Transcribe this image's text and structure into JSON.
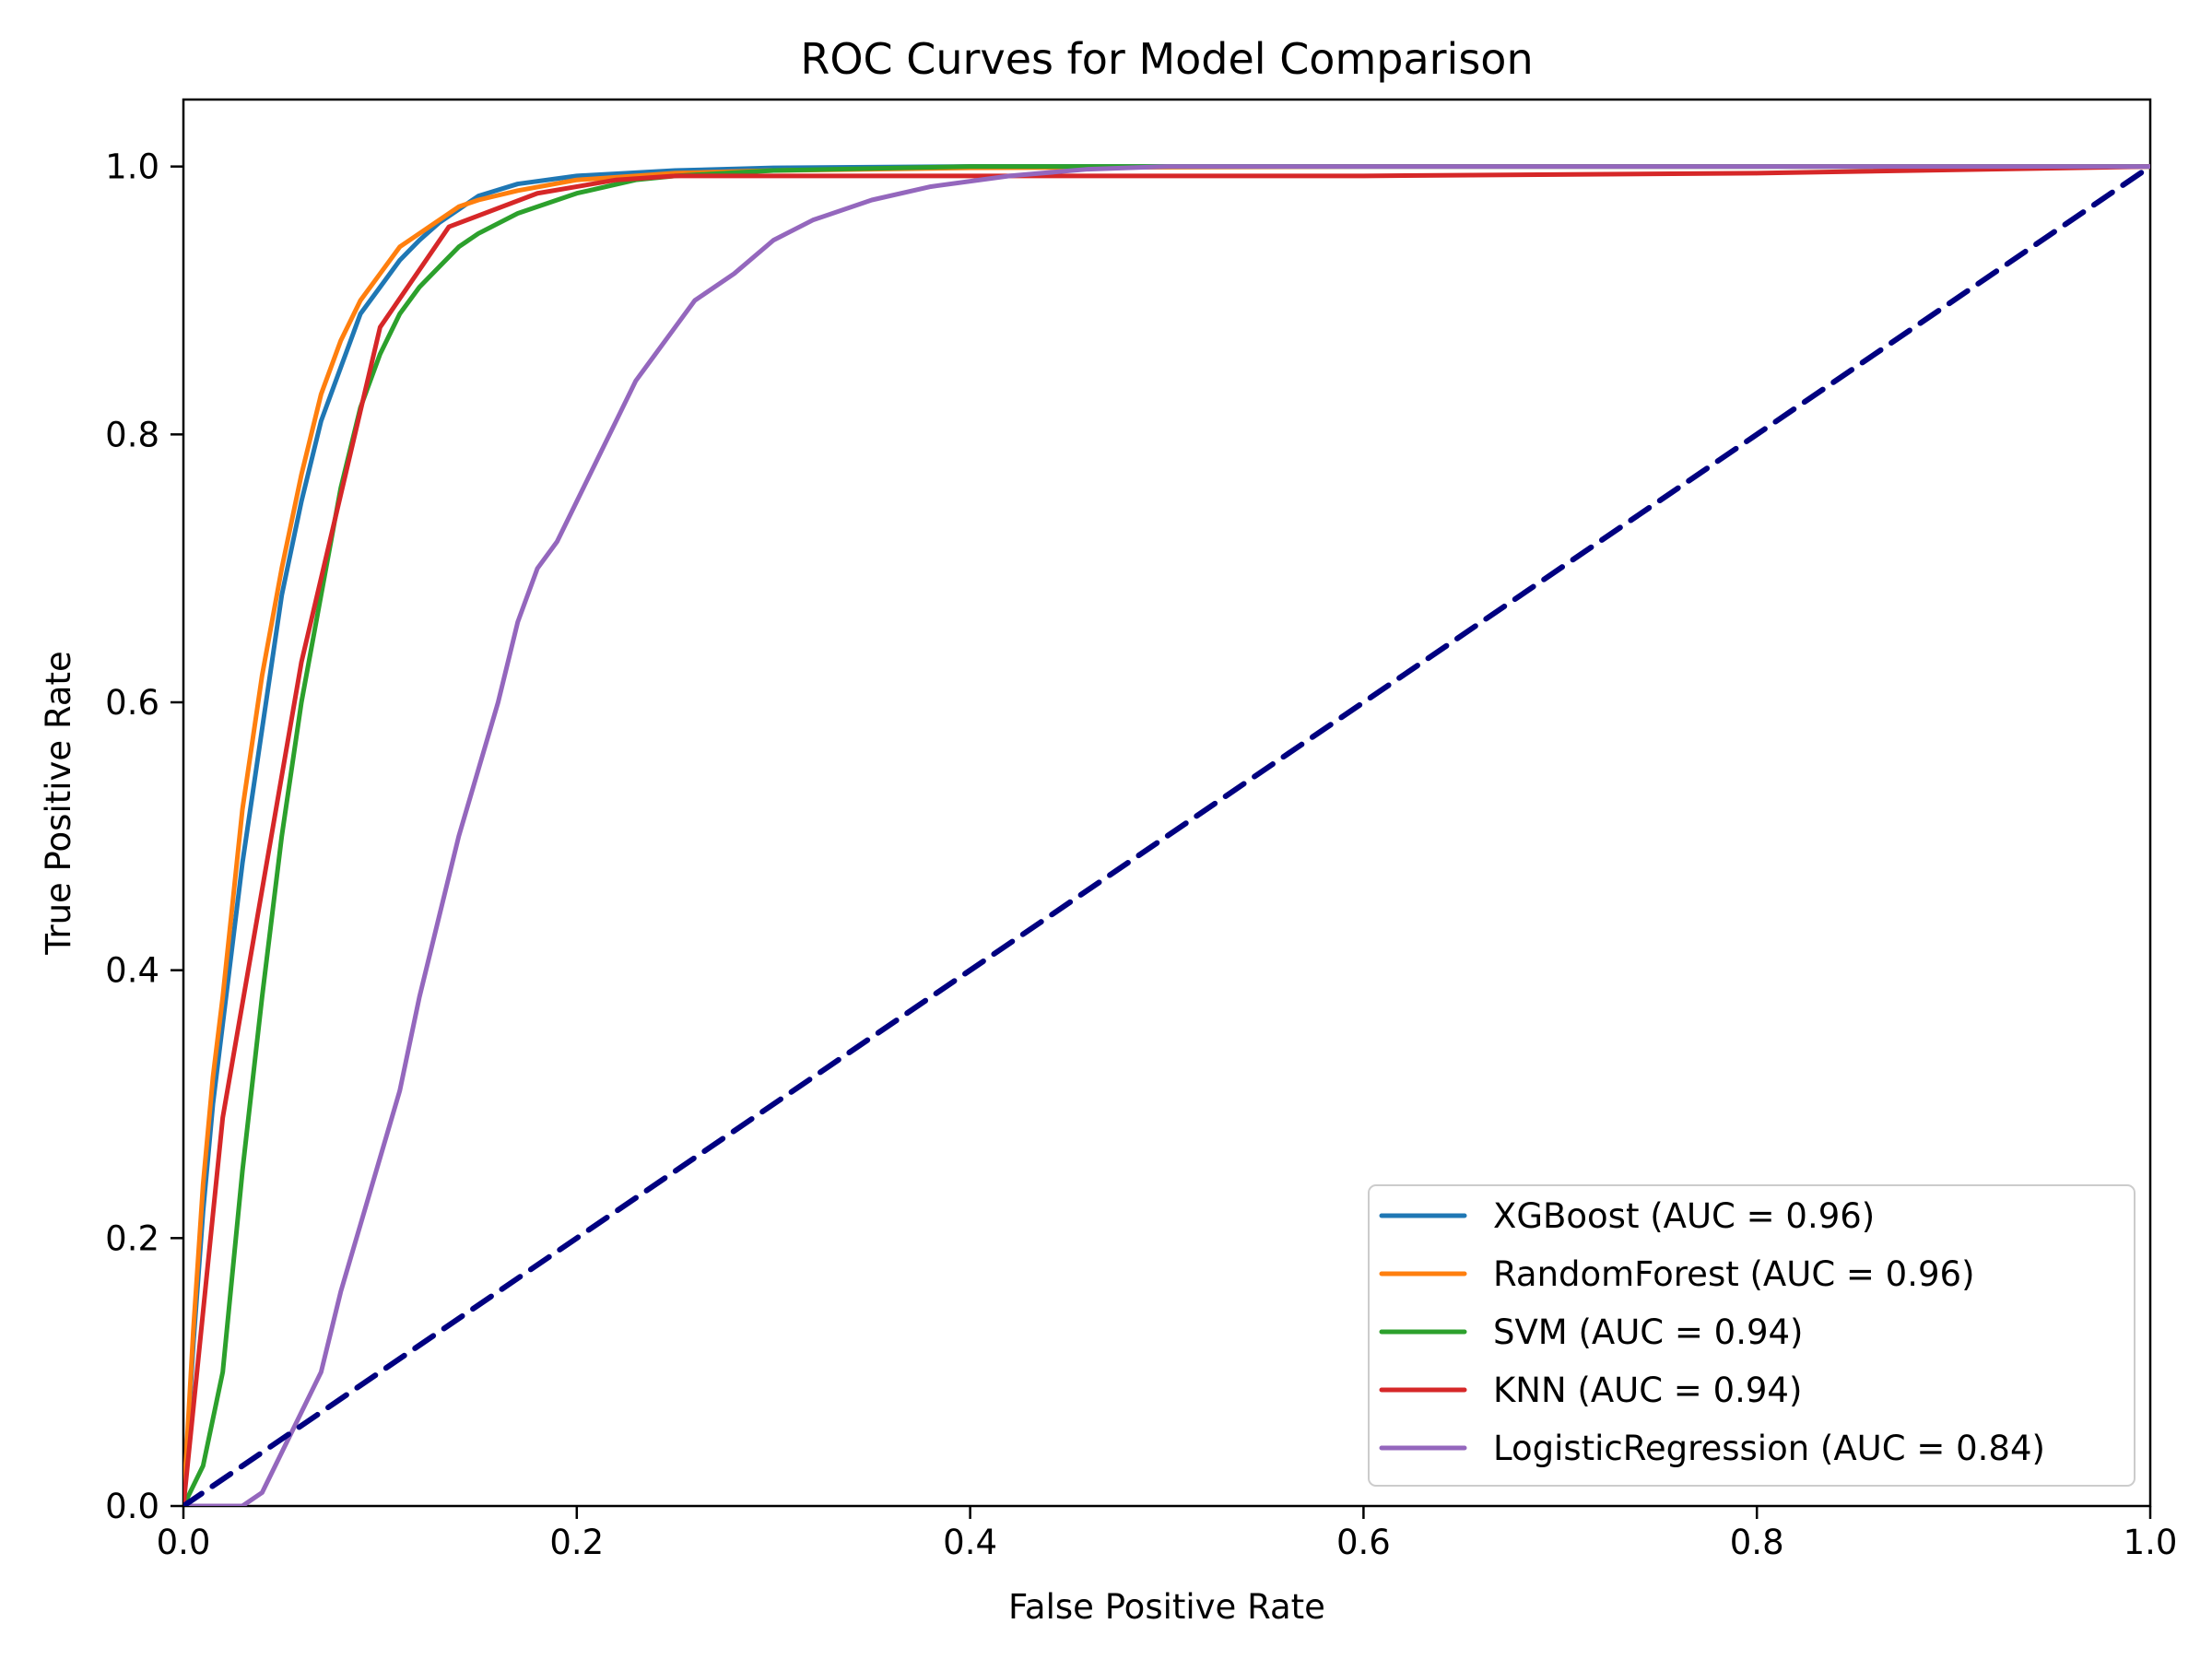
{
  "chart_data": {
    "type": "line",
    "title": "ROC Curves for Model Comparison",
    "xlabel": "False Positive Rate",
    "ylabel": "True Positive Rate",
    "xlim": [
      0.0,
      1.0
    ],
    "ylim": [
      0.0,
      1.05
    ],
    "x_ticks": [
      0.0,
      0.2,
      0.4,
      0.6,
      0.8,
      1.0
    ],
    "y_ticks": [
      0.0,
      0.2,
      0.4,
      0.6,
      0.8,
      1.0
    ],
    "x_tick_labels": [
      "0.0",
      "0.2",
      "0.4",
      "0.6",
      "0.8",
      "1.0"
    ],
    "y_tick_labels": [
      "0.0",
      "0.2",
      "0.4",
      "0.6",
      "0.8",
      "1.0"
    ],
    "legend_position": "lower-right",
    "grid": false,
    "series": [
      {
        "name": "XGBoost (AUC = 0.96)",
        "color": "#1f77b4",
        "x": [
          0.0,
          0.005,
          0.01,
          0.015,
          0.02,
          0.03,
          0.04,
          0.05,
          0.06,
          0.07,
          0.08,
          0.09,
          0.1,
          0.11,
          0.12,
          0.13,
          0.14,
          0.15,
          0.17,
          0.2,
          0.25,
          0.3,
          0.4,
          0.6,
          0.8,
          1.0
        ],
        "y": [
          0.0,
          0.12,
          0.22,
          0.3,
          0.36,
          0.48,
          0.58,
          0.68,
          0.75,
          0.81,
          0.85,
          0.89,
          0.91,
          0.93,
          0.945,
          0.958,
          0.968,
          0.978,
          0.987,
          0.993,
          0.997,
          0.999,
          1.0,
          1.0,
          1.0,
          1.0
        ]
      },
      {
        "name": "RandomForest (AUC = 0.96)",
        "color": "#ff7f0e",
        "x": [
          0.0,
          0.005,
          0.01,
          0.015,
          0.02,
          0.03,
          0.04,
          0.05,
          0.06,
          0.07,
          0.08,
          0.09,
          0.1,
          0.11,
          0.12,
          0.13,
          0.14,
          0.15,
          0.17,
          0.2,
          0.23,
          0.25,
          0.3,
          0.4,
          0.6,
          0.8,
          1.0
        ],
        "y": [
          0.0,
          0.13,
          0.24,
          0.32,
          0.38,
          0.52,
          0.62,
          0.7,
          0.77,
          0.83,
          0.87,
          0.9,
          0.92,
          0.94,
          0.95,
          0.96,
          0.97,
          0.975,
          0.982,
          0.99,
          0.993,
          0.995,
          0.997,
          0.999,
          1.0,
          1.0,
          1.0
        ]
      },
      {
        "name": "SVM (AUC = 0.94)",
        "color": "#2ca02c",
        "x": [
          0.0,
          0.01,
          0.02,
          0.03,
          0.04,
          0.05,
          0.06,
          0.07,
          0.08,
          0.09,
          0.1,
          0.11,
          0.12,
          0.13,
          0.14,
          0.15,
          0.17,
          0.2,
          0.23,
          0.25,
          0.3,
          0.4,
          0.6,
          0.8,
          1.0
        ],
        "y": [
          0.0,
          0.03,
          0.1,
          0.25,
          0.38,
          0.5,
          0.6,
          0.68,
          0.76,
          0.82,
          0.86,
          0.89,
          0.91,
          0.925,
          0.94,
          0.95,
          0.965,
          0.98,
          0.99,
          0.993,
          0.997,
          1.0,
          1.0,
          1.0,
          1.0
        ]
      },
      {
        "name": "KNN (AUC = 0.94)",
        "color": "#d62728",
        "x": [
          0.0,
          0.02,
          0.06,
          0.1,
          0.135,
          0.18,
          0.22,
          0.25,
          0.4,
          0.6,
          0.8,
          1.0
        ],
        "y": [
          0.0,
          0.29,
          0.63,
          0.88,
          0.955,
          0.98,
          0.99,
          0.993,
          0.993,
          0.993,
          0.995,
          1.0
        ]
      },
      {
        "name": "LogisticRegression (AUC = 0.84)",
        "color": "#9467bd",
        "x": [
          0.0,
          0.03,
          0.04,
          0.05,
          0.06,
          0.07,
          0.08,
          0.09,
          0.1,
          0.11,
          0.12,
          0.13,
          0.14,
          0.15,
          0.16,
          0.17,
          0.18,
          0.19,
          0.2,
          0.21,
          0.22,
          0.23,
          0.24,
          0.25,
          0.26,
          0.28,
          0.3,
          0.32,
          0.35,
          0.38,
          0.42,
          0.46,
          0.5,
          0.6,
          0.8,
          1.0
        ],
        "y": [
          0.0,
          0.0,
          0.01,
          0.04,
          0.07,
          0.1,
          0.16,
          0.21,
          0.26,
          0.31,
          0.38,
          0.44,
          0.5,
          0.55,
          0.6,
          0.66,
          0.7,
          0.72,
          0.75,
          0.78,
          0.81,
          0.84,
          0.86,
          0.88,
          0.9,
          0.92,
          0.945,
          0.96,
          0.975,
          0.985,
          0.993,
          0.998,
          1.0,
          1.0,
          1.0,
          1.0
        ]
      },
      {
        "name": "",
        "color": "#000080",
        "dash": "dashed",
        "x": [
          0.0,
          1.0
        ],
        "y": [
          0.0,
          1.0
        ]
      }
    ]
  }
}
